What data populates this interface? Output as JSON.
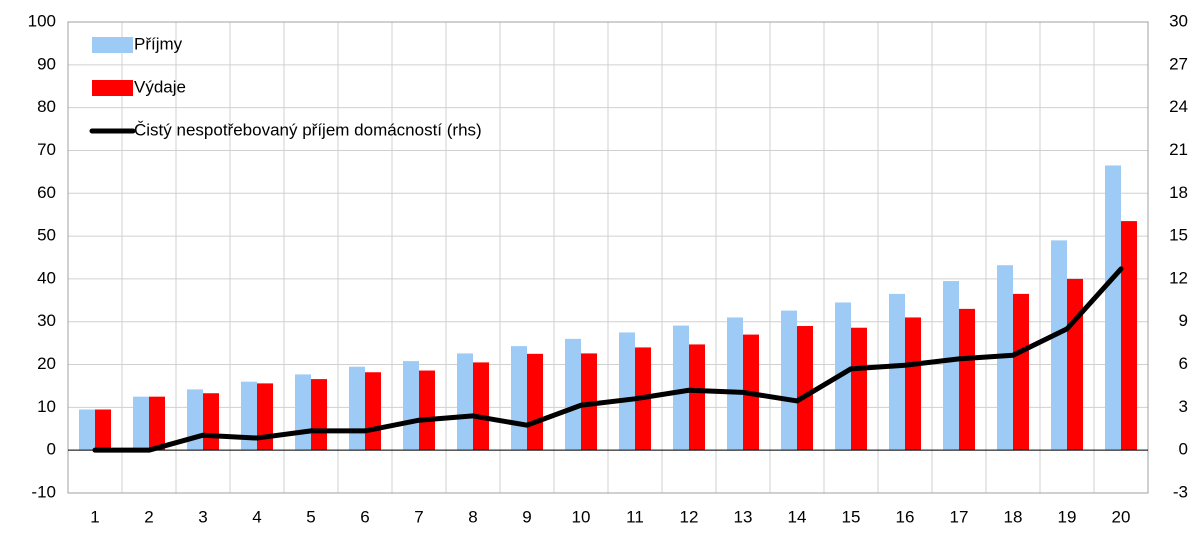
{
  "chart_data": {
    "type": "bar",
    "categories": [
      "1",
      "2",
      "3",
      "4",
      "5",
      "6",
      "7",
      "8",
      "9",
      "10",
      "11",
      "12",
      "13",
      "14",
      "15",
      "16",
      "17",
      "18",
      "19",
      "20"
    ],
    "series": [
      {
        "name": "Příjmy",
        "color": "#9ecbf5",
        "values": [
          9.5,
          12.5,
          14.2,
          16,
          17.7,
          19.5,
          20.8,
          22.6,
          24.3,
          26,
          27.5,
          29.1,
          31,
          32.6,
          34.5,
          36.5,
          39.5,
          43.2,
          49,
          66.5
        ]
      },
      {
        "name": "Výdaje",
        "color": "#ff0000",
        "values": [
          9.5,
          12.5,
          13.3,
          15.6,
          16.6,
          18.2,
          18.6,
          20.5,
          22.5,
          22.6,
          24,
          24.7,
          27,
          29,
          28.6,
          31,
          33,
          36.5,
          40,
          53.5
        ]
      },
      {
        "name": "Čistý nespotřebovaný příjem domácností (rhs)",
        "type": "line",
        "axis": "y2",
        "color": "#000000",
        "values": [
          0,
          0,
          1.05,
          0.85,
          1.35,
          1.35,
          2.1,
          2.4,
          1.75,
          3.15,
          3.6,
          4.2,
          4.05,
          3.45,
          5.7,
          5.95,
          6.4,
          6.65,
          8.5,
          12.7
        ]
      }
    ],
    "ylim": [
      -10,
      100
    ],
    "yticks": [
      -10,
      0,
      10,
      20,
      30,
      40,
      50,
      60,
      70,
      80,
      90,
      100
    ],
    "y2lim": [
      -3,
      30
    ],
    "y2ticks": [
      -3,
      0,
      3,
      6,
      9,
      12,
      15,
      18,
      21,
      24,
      27,
      30
    ],
    "grid": true,
    "legend": "upper left"
  }
}
